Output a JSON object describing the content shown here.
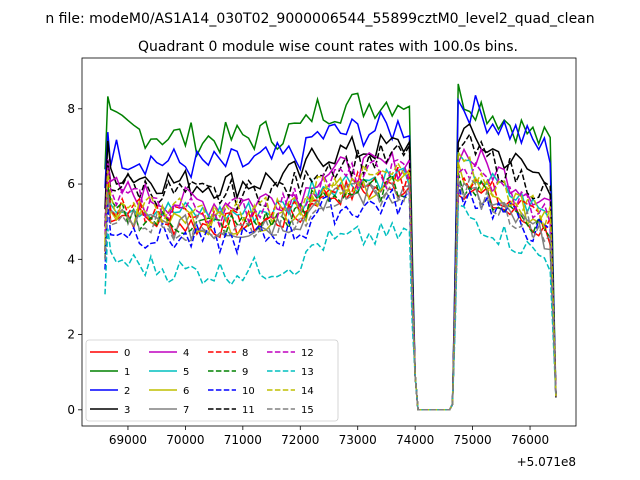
{
  "chart_data": {
    "type": "line",
    "suptitle": "n file: modeM0/AS1A14_030T02_9000006544_55899cztM0_level2_quad_clean",
    "title": "Quadrant 0 module wise count rates with 100.0s bins.",
    "offset_label": "+5.071e8",
    "xlim": [
      68200,
      76800
    ],
    "ylim": [
      -0.43,
      9.35
    ],
    "xticks": [
      69000,
      70000,
      71000,
      72000,
      73000,
      74000,
      75000,
      76000
    ],
    "xtick_labels": [
      "69000",
      "70000",
      "71000",
      "72000",
      "73000",
      "74000",
      "75000",
      "76000"
    ],
    "yticks": [
      0,
      2,
      4,
      6,
      8
    ],
    "ytick_labels": [
      "0",
      "2",
      "4",
      "6",
      "8"
    ],
    "grid": false,
    "legend_position": "lower-left",
    "series": [
      {
        "name": "0",
        "color": "#ff0000",
        "dash": "solid",
        "level": 5.3,
        "amp": 0.35,
        "post": 5.1
      },
      {
        "name": "1",
        "color": "#008000",
        "dash": "solid",
        "level": 7.6,
        "amp": 0.45,
        "post": 7.5
      },
      {
        "name": "2",
        "color": "#0000ff",
        "dash": "solid",
        "level": 6.9,
        "amp": 0.45,
        "post": 7.3
      },
      {
        "name": "3",
        "color": "#000000",
        "dash": "solid",
        "level": 6.4,
        "amp": 0.4,
        "post": 6.5
      },
      {
        "name": "4",
        "color": "#bf00bf",
        "dash": "solid",
        "level": 5.9,
        "amp": 0.4,
        "post": 6.0
      },
      {
        "name": "5",
        "color": "#00bfbf",
        "dash": "solid",
        "level": 5.6,
        "amp": 0.35,
        "post": 5.6
      },
      {
        "name": "6",
        "color": "#bfbf00",
        "dash": "solid",
        "level": 5.4,
        "amp": 0.35,
        "post": 5.4
      },
      {
        "name": "7",
        "color": "#808080",
        "dash": "solid",
        "level": 5.2,
        "amp": 0.35,
        "post": 5.0
      },
      {
        "name": "8",
        "color": "#ff0000",
        "dash": "dashed",
        "level": 5.5,
        "amp": 0.35,
        "post": 5.4
      },
      {
        "name": "9",
        "color": "#008000",
        "dash": "dashed",
        "level": 5.3,
        "amp": 0.35,
        "post": 5.2
      },
      {
        "name": "10",
        "color": "#0000ff",
        "dash": "dashed",
        "level": 4.9,
        "amp": 0.4,
        "post": 5.0
      },
      {
        "name": "11",
        "color": "#000000",
        "dash": "dashed",
        "level": 6.1,
        "amp": 0.4,
        "post": 6.2
      },
      {
        "name": "12",
        "color": "#bf00bf",
        "dash": "dashed",
        "level": 5.7,
        "amp": 0.4,
        "post": 5.6
      },
      {
        "name": "13",
        "color": "#00bfbf",
        "dash": "dashed",
        "level": 4.05,
        "amp": 0.35,
        "post": 4.4
      },
      {
        "name": "14",
        "color": "#bfbf00",
        "dash": "dashed",
        "level": 5.6,
        "amp": 0.4,
        "post": 5.6
      },
      {
        "name": "15",
        "color": "#808080",
        "dash": "dashed",
        "level": 5.2,
        "amp": 0.35,
        "post": 5.1
      }
    ],
    "segments": {
      "first": {
        "start": 68600,
        "end": 73900
      },
      "drop": [
        74000,
        74700
      ],
      "second": {
        "start": 74750,
        "end": 76400
      }
    }
  }
}
